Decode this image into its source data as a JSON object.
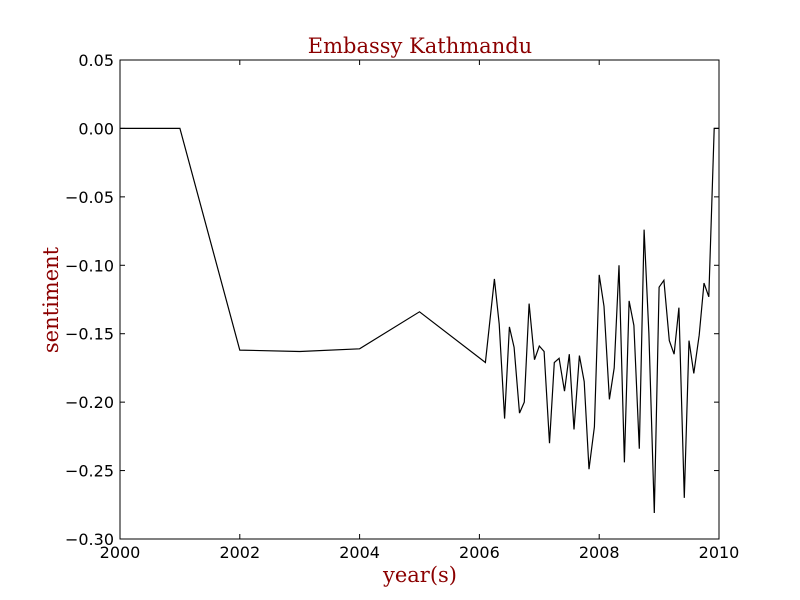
{
  "chart_data": {
    "type": "line",
    "title": "Embassy Kathmandu",
    "xlabel": "year(s)",
    "ylabel": "sentiment",
    "xlim": [
      2000,
      2010
    ],
    "ylim": [
      -0.3,
      0.05
    ],
    "x_ticks": [
      2000,
      2002,
      2004,
      2006,
      2008,
      2010
    ],
    "x_tick_labels": [
      "2000",
      "2002",
      "2004",
      "2006",
      "2008",
      "2010"
    ],
    "y_ticks": [
      0.05,
      0.0,
      -0.05,
      -0.1,
      -0.15,
      -0.2,
      -0.25,
      -0.3
    ],
    "y_tick_labels": [
      "0.05",
      "0.00",
      "−0.05",
      "−0.10",
      "−0.15",
      "−0.20",
      "−0.25",
      "−0.30"
    ],
    "grid": false,
    "line_color": "#000000",
    "title_color": "#8b0000",
    "series": [
      {
        "x": [
          2000.0,
          2001.0,
          2002.0,
          2003.0,
          2004.0,
          2005.0,
          2006.1,
          2006.25,
          2006.33,
          2006.42,
          2006.5,
          2006.58,
          2006.67,
          2006.75,
          2006.83,
          2006.92,
          2007.0,
          2007.08,
          2007.17,
          2007.25,
          2007.33,
          2007.42,
          2007.5,
          2007.58,
          2007.67,
          2007.75,
          2007.83,
          2007.92,
          2008.0,
          2008.08,
          2008.17,
          2008.25,
          2008.33,
          2008.42,
          2008.5,
          2008.58,
          2008.67,
          2008.75,
          2008.83,
          2008.92,
          2009.0,
          2009.08,
          2009.17,
          2009.25,
          2009.33,
          2009.42,
          2009.5,
          2009.58,
          2009.67,
          2009.75,
          2009.83,
          2009.92,
          2010.0
        ],
        "y": [
          0.0,
          0.0,
          -0.162,
          -0.163,
          -0.161,
          -0.134,
          -0.171,
          -0.11,
          -0.143,
          -0.212,
          -0.145,
          -0.16,
          -0.208,
          -0.2,
          -0.128,
          -0.169,
          -0.159,
          -0.163,
          -0.23,
          -0.171,
          -0.168,
          -0.192,
          -0.165,
          -0.22,
          -0.166,
          -0.185,
          -0.249,
          -0.218,
          -0.107,
          -0.13,
          -0.198,
          -0.175,
          -0.1,
          -0.244,
          -0.126,
          -0.144,
          -0.234,
          -0.074,
          -0.15,
          -0.281,
          -0.116,
          -0.111,
          -0.155,
          -0.165,
          -0.131,
          -0.27,
          -0.155,
          -0.179,
          -0.151,
          -0.113,
          -0.123,
          0.0,
          0.0
        ]
      }
    ]
  }
}
